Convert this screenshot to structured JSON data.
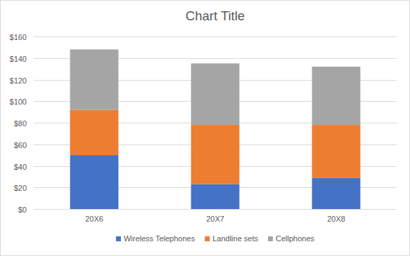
{
  "chart_data": {
    "type": "bar",
    "title": "Chart Title",
    "stacked": true,
    "grid": true,
    "legend": "bottom",
    "categories": [
      "20X6",
      "20X7",
      "20X8"
    ],
    "series": [
      {
        "name": "Wireless Telephones",
        "color": "#4472c4",
        "values": [
          50,
          23,
          29
        ]
      },
      {
        "name": "Landline sets",
        "color": "#ed7d31",
        "values": [
          42,
          55,
          49
        ]
      },
      {
        "name": "Cellphones",
        "color": "#a5a5a5",
        "values": [
          56,
          57,
          54
        ]
      }
    ],
    "ylim": [
      0,
      160
    ],
    "yticks": [
      {
        "value": 0,
        "label": "$0"
      },
      {
        "value": 20,
        "label": "$20"
      },
      {
        "value": 40,
        "label": "$40"
      },
      {
        "value": 60,
        "label": "$60"
      },
      {
        "value": 80,
        "label": "$80"
      },
      {
        "value": 100,
        "label": "$100"
      },
      {
        "value": 120,
        "label": "$120"
      },
      {
        "value": 140,
        "label": "$140"
      },
      {
        "value": 160,
        "label": "$160"
      }
    ]
  }
}
